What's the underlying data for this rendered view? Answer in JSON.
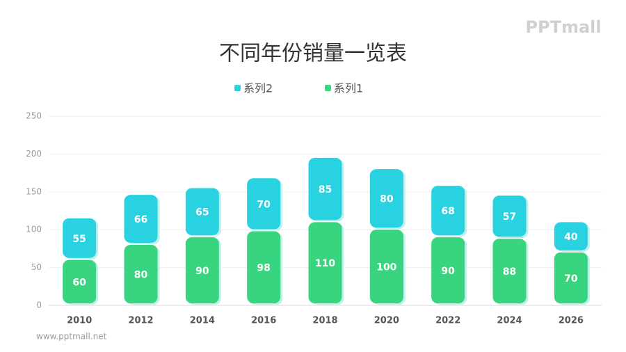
{
  "chart_data": {
    "type": "stacked-bar",
    "title": "不同年份销量一览表",
    "categories": [
      "2010",
      "2012",
      "2014",
      "2016",
      "2018",
      "2020",
      "2022",
      "2024",
      "2026"
    ],
    "series": [
      {
        "name": "系列1",
        "color": "#38d47f",
        "values": [
          60,
          80,
          90,
          98,
          110,
          100,
          90,
          88,
          70
        ]
      },
      {
        "name": "系列2",
        "color": "#29d2e0",
        "values": [
          55,
          66,
          65,
          70,
          85,
          80,
          68,
          57,
          40
        ]
      }
    ],
    "ylim": [
      0,
      250
    ],
    "yticks": [
      0,
      50,
      100,
      150,
      200,
      250
    ],
    "grid": true,
    "legend": "top",
    "watermark": "PPTmall",
    "footer": "www.pptmall.net"
  }
}
